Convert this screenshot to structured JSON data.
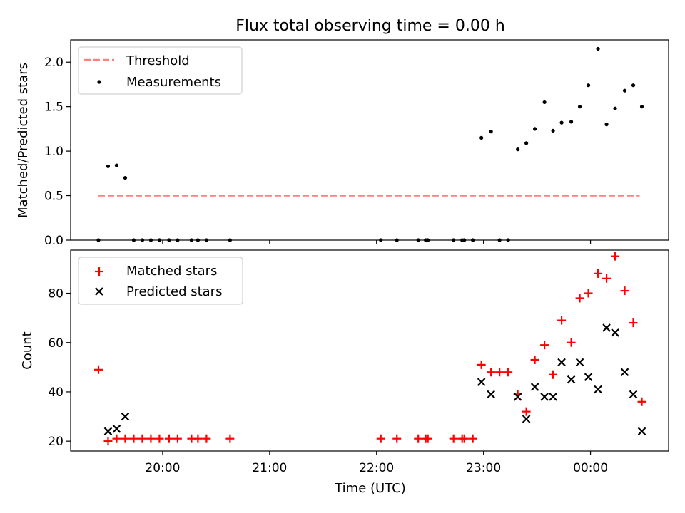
{
  "title": "Flux total observing time = 0.00 h",
  "chart_data": [
    {
      "type": "scatter",
      "ylabel": "Matched/Predicted stars",
      "xlabel": "",
      "xlim": [
        19.14,
        24.73
      ],
      "ylim": [
        0,
        2.25
      ],
      "yticks": [
        0.0,
        0.5,
        1.0,
        1.5,
        2.0
      ],
      "ytick_labels": [
        "0.0",
        "0.5",
        "1.0",
        "1.5",
        "2.0"
      ],
      "legend_position": "upper-left",
      "threshold": {
        "name": "Threshold",
        "value": 0.5,
        "x_range": [
          19.4,
          24.46
        ],
        "color": "#ff8080",
        "style": "dashed"
      },
      "series": [
        {
          "name": "Measurements",
          "marker": "dot",
          "color": "#000000",
          "x": [
            19.4,
            19.49,
            19.57,
            19.65,
            19.73,
            19.81,
            19.89,
            19.97,
            20.06,
            20.14,
            20.27,
            20.33,
            20.41,
            20.63,
            22.04,
            22.19,
            22.39,
            22.46,
            22.48,
            22.72,
            22.8,
            22.82,
            22.9,
            22.98,
            23.07,
            23.15,
            23.23,
            23.32,
            23.4,
            23.48,
            23.57,
            23.65,
            23.73,
            23.82,
            23.9,
            23.98,
            24.07,
            24.15,
            24.23,
            24.32,
            24.4,
            24.48
          ],
          "y": [
            0.0,
            0.83,
            0.84,
            0.7,
            0.0,
            0.0,
            0.0,
            0.0,
            0.0,
            0.0,
            0.0,
            0.0,
            0.0,
            0.0,
            0.0,
            0.0,
            0.0,
            0.0,
            0.0,
            0.0,
            0.0,
            0.0,
            0.0,
            1.15,
            1.22,
            0.0,
            0.0,
            1.02,
            1.09,
            1.25,
            1.55,
            1.23,
            1.32,
            1.33,
            1.5,
            1.74,
            2.15,
            1.3,
            1.48,
            1.68,
            1.74,
            1.5
          ]
        }
      ]
    },
    {
      "type": "scatter",
      "ylabel": "Count",
      "xlabel": "Time (UTC)",
      "xlim": [
        19.14,
        24.73
      ],
      "ylim": [
        16,
        97.5
      ],
      "yticks": [
        20,
        40,
        60,
        80
      ],
      "ytick_labels": [
        "20",
        "40",
        "60",
        "80"
      ],
      "xticks": [
        20,
        21,
        22,
        23,
        24
      ],
      "xtick_labels": [
        "20:00",
        "21:00",
        "22:00",
        "23:00",
        "00:00"
      ],
      "legend_position": "upper-left",
      "series": [
        {
          "name": "Matched stars",
          "marker": "plus",
          "color": "#ff0000",
          "x": [
            19.4,
            19.49,
            19.57,
            19.65,
            19.73,
            19.81,
            19.89,
            19.97,
            20.06,
            20.14,
            20.27,
            20.33,
            20.41,
            20.63,
            22.04,
            22.19,
            22.39,
            22.46,
            22.48,
            22.72,
            22.8,
            22.82,
            22.9,
            22.98,
            23.07,
            23.15,
            23.23,
            23.32,
            23.4,
            23.48,
            23.57,
            23.65,
            23.73,
            23.82,
            23.9,
            23.98,
            24.07,
            24.15,
            24.23,
            24.32,
            24.4,
            24.48
          ],
          "y": [
            49,
            20,
            21,
            21,
            21,
            21,
            21,
            21,
            21,
            21,
            21,
            21,
            21,
            21,
            21,
            21,
            21,
            21,
            21,
            21,
            21,
            21,
            21,
            51,
            48,
            48,
            48,
            39,
            32,
            53,
            59,
            47,
            69,
            60,
            78,
            80,
            88,
            86,
            95,
            81,
            68,
            36
          ]
        },
        {
          "name": "Predicted stars",
          "marker": "x",
          "color": "#000000",
          "x": [
            19.49,
            19.57,
            19.65,
            22.98,
            23.07,
            23.32,
            23.4,
            23.48,
            23.57,
            23.65,
            23.73,
            23.82,
            23.9,
            23.98,
            24.07,
            24.15,
            24.23,
            24.32,
            24.4,
            24.48
          ],
          "y": [
            24,
            25,
            30,
            44,
            39,
            38,
            29,
            42,
            38,
            38,
            52,
            45,
            52,
            46,
            41,
            66,
            64,
            48,
            39,
            24
          ]
        }
      ]
    }
  ]
}
